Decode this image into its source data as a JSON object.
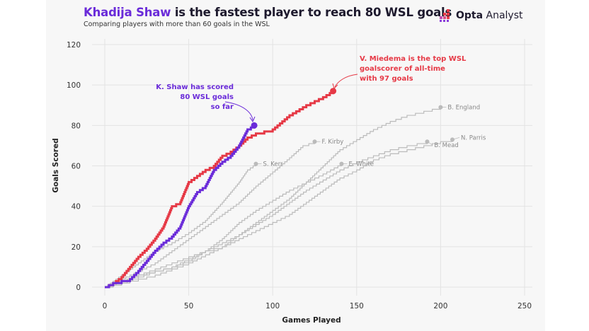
{
  "header": {
    "title_highlight": "Khadija Shaw",
    "title_rest": " is the fastest player to reach 80 WSL goals",
    "subtitle": "Comparing players with more than 60 goals in the WSL",
    "logo_bold": "Opta",
    "logo_rest": " Analyst"
  },
  "colors": {
    "shaw": "#6a2bd9",
    "miedema": "#e63946",
    "others": "#bbbbbb",
    "grid": "#e3e3e3",
    "background": "#f7f7f7"
  },
  "chart_data": {
    "type": "line",
    "step": true,
    "xlabel": "Games Played",
    "ylabel": "Goals Scored",
    "xlim": [
      0,
      250
    ],
    "ylim": [
      0,
      120
    ],
    "xticks": [
      0,
      50,
      100,
      150,
      200,
      250
    ],
    "yticks": [
      0,
      20,
      40,
      60,
      80,
      100,
      120
    ],
    "grid": true,
    "series": [
      {
        "name": "B. England",
        "highlight": false,
        "points": [
          [
            0,
            0
          ],
          [
            10,
            2
          ],
          [
            20,
            5
          ],
          [
            30,
            8
          ],
          [
            40,
            10
          ],
          [
            50,
            13
          ],
          [
            60,
            18
          ],
          [
            70,
            22
          ],
          [
            80,
            26
          ],
          [
            90,
            32
          ],
          [
            100,
            38
          ],
          [
            110,
            44
          ],
          [
            120,
            52
          ],
          [
            130,
            60
          ],
          [
            140,
            68
          ],
          [
            150,
            73
          ],
          [
            160,
            78
          ],
          [
            170,
            82
          ],
          [
            180,
            85
          ],
          [
            190,
            87
          ],
          [
            200,
            89
          ]
        ]
      },
      {
        "name": "N. Parris",
        "highlight": false,
        "points": [
          [
            0,
            0
          ],
          [
            10,
            3
          ],
          [
            20,
            6
          ],
          [
            30,
            9
          ],
          [
            40,
            12
          ],
          [
            50,
            15
          ],
          [
            60,
            18
          ],
          [
            70,
            20
          ],
          [
            80,
            24
          ],
          [
            90,
            28
          ],
          [
            100,
            32
          ],
          [
            110,
            36
          ],
          [
            120,
            42
          ],
          [
            130,
            48
          ],
          [
            140,
            54
          ],
          [
            150,
            58
          ],
          [
            160,
            63
          ],
          [
            170,
            66
          ],
          [
            180,
            68
          ],
          [
            190,
            70
          ],
          [
            200,
            72
          ],
          [
            207,
            73
          ]
        ]
      },
      {
        "name": "B. Mead",
        "highlight": false,
        "points": [
          [
            0,
            0
          ],
          [
            10,
            2
          ],
          [
            20,
            4
          ],
          [
            30,
            6
          ],
          [
            40,
            9
          ],
          [
            50,
            12
          ],
          [
            60,
            16
          ],
          [
            70,
            20
          ],
          [
            80,
            26
          ],
          [
            90,
            31
          ],
          [
            100,
            36
          ],
          [
            110,
            42
          ],
          [
            120,
            48
          ],
          [
            130,
            53
          ],
          [
            140,
            58
          ],
          [
            150,
            62
          ],
          [
            160,
            65
          ],
          [
            170,
            68
          ],
          [
            180,
            70
          ],
          [
            192,
            72
          ]
        ]
      },
      {
        "name": "F. Kirby",
        "highlight": false,
        "points": [
          [
            0,
            0
          ],
          [
            10,
            4
          ],
          [
            20,
            8
          ],
          [
            30,
            12
          ],
          [
            40,
            18
          ],
          [
            50,
            24
          ],
          [
            60,
            30
          ],
          [
            70,
            36
          ],
          [
            80,
            42
          ],
          [
            90,
            50
          ],
          [
            100,
            57
          ],
          [
            110,
            64
          ],
          [
            118,
            70
          ],
          [
            125,
            72
          ]
        ]
      },
      {
        "name": "E. White",
        "highlight": false,
        "points": [
          [
            0,
            0
          ],
          [
            10,
            3
          ],
          [
            20,
            6
          ],
          [
            30,
            8
          ],
          [
            40,
            10
          ],
          [
            50,
            14
          ],
          [
            60,
            18
          ],
          [
            70,
            24
          ],
          [
            80,
            32
          ],
          [
            90,
            38
          ],
          [
            100,
            43
          ],
          [
            110,
            48
          ],
          [
            120,
            52
          ],
          [
            130,
            56
          ],
          [
            141,
            61
          ]
        ]
      },
      {
        "name": "S. Kerr",
        "highlight": false,
        "points": [
          [
            0,
            0
          ],
          [
            5,
            3
          ],
          [
            10,
            6
          ],
          [
            20,
            12
          ],
          [
            30,
            18
          ],
          [
            40,
            22
          ],
          [
            50,
            27
          ],
          [
            60,
            33
          ],
          [
            70,
            42
          ],
          [
            80,
            52
          ],
          [
            85,
            58
          ],
          [
            90,
            61
          ]
        ]
      },
      {
        "name": "V. Miedema",
        "highlight": true,
        "points": [
          [
            0,
            0
          ],
          [
            5,
            2
          ],
          [
            10,
            5
          ],
          [
            15,
            10
          ],
          [
            20,
            15
          ],
          [
            25,
            19
          ],
          [
            30,
            24
          ],
          [
            35,
            30
          ],
          [
            40,
            40
          ],
          [
            45,
            42
          ],
          [
            50,
            52
          ],
          [
            55,
            55
          ],
          [
            60,
            58
          ],
          [
            65,
            60
          ],
          [
            70,
            65
          ],
          [
            75,
            67
          ],
          [
            80,
            70
          ],
          [
            85,
            74
          ],
          [
            90,
            76
          ],
          [
            100,
            78
          ],
          [
            110,
            85
          ],
          [
            120,
            90
          ],
          [
            130,
            94
          ],
          [
            136,
            97
          ]
        ]
      },
      {
        "name": "K. Shaw",
        "highlight": true,
        "points": [
          [
            0,
            0
          ],
          [
            5,
            2
          ],
          [
            10,
            3
          ],
          [
            15,
            4
          ],
          [
            20,
            8
          ],
          [
            25,
            13
          ],
          [
            30,
            18
          ],
          [
            35,
            22
          ],
          [
            40,
            25
          ],
          [
            45,
            30
          ],
          [
            50,
            40
          ],
          [
            55,
            47
          ],
          [
            60,
            50
          ],
          [
            65,
            58
          ],
          [
            70,
            62
          ],
          [
            75,
            65
          ],
          [
            80,
            70
          ],
          [
            85,
            78
          ],
          [
            89,
            80
          ]
        ]
      }
    ],
    "annotations": {
      "shaw": [
        "K. Shaw has scored",
        "80 WSL goals",
        "so far"
      ],
      "miedema": [
        "V. Miedema is the top WSL",
        "goalscorer of all-time",
        "with 97 goals"
      ]
    }
  }
}
